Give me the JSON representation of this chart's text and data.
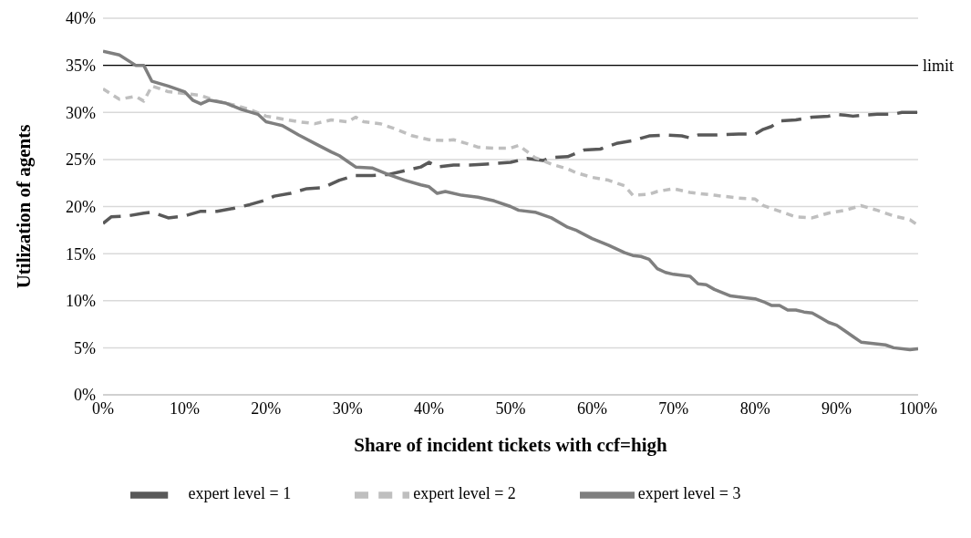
{
  "chart_data": {
    "type": "line",
    "xlabel": "Share of incident tickets with ccf=high",
    "ylabel": "Utilization of agents",
    "xlim": [
      0,
      100
    ],
    "xticks": [
      {
        "value": 0,
        "label": "0%"
      },
      {
        "value": 10,
        "label": "10%"
      },
      {
        "value": 20,
        "label": "20%"
      },
      {
        "value": 30,
        "label": "30%"
      },
      {
        "value": 40,
        "label": "40%"
      },
      {
        "value": 50,
        "label": "50%"
      },
      {
        "value": 60,
        "label": "60%"
      },
      {
        "value": 70,
        "label": "70%"
      },
      {
        "value": 80,
        "label": "80%"
      },
      {
        "value": 90,
        "label": "90%"
      },
      {
        "value": 100,
        "label": "100%"
      }
    ],
    "ylim": [
      0,
      40
    ],
    "yticks": [
      {
        "value": 0,
        "label": "0%"
      },
      {
        "value": 5,
        "label": "5%"
      },
      {
        "value": 10,
        "label": "10%"
      },
      {
        "value": 15,
        "label": "15%"
      },
      {
        "value": 20,
        "label": "20%"
      },
      {
        "value": 25,
        "label": "25%"
      },
      {
        "value": 30,
        "label": "30%"
      },
      {
        "value": 35,
        "label": "35%"
      },
      {
        "value": 40,
        "label": "40%"
      }
    ],
    "grid": "y",
    "legend": "bottom",
    "marker": "none",
    "ref_lines": [
      {
        "axis": "y",
        "value": 35,
        "label": "limit",
        "color": "#000000"
      }
    ],
    "series": [
      {
        "name": "expert level = 1",
        "color": "#595959",
        "line_style": "dashed",
        "x": [
          0,
          1,
          3,
          5,
          6,
          8,
          10,
          12,
          14,
          16,
          18,
          20,
          21,
          23,
          25,
          27,
          29,
          31,
          33,
          35,
          37,
          39,
          40,
          41,
          43,
          45,
          47,
          50,
          52,
          54,
          55,
          57,
          59,
          61,
          63,
          65,
          67,
          69,
          71,
          72,
          73,
          75,
          78,
          80,
          81,
          82,
          83,
          85,
          87,
          89,
          90,
          91,
          92,
          95,
          97,
          98,
          100
        ],
        "values": [
          18.2,
          18.9,
          19.0,
          19.3,
          19.4,
          18.8,
          19.0,
          19.5,
          19.5,
          19.8,
          20.2,
          20.7,
          21.1,
          21.4,
          21.9,
          22.0,
          22.8,
          23.3,
          23.3,
          23.4,
          23.8,
          24.2,
          24.7,
          24.2,
          24.4,
          24.4,
          24.5,
          24.7,
          25.1,
          24.9,
          25.2,
          25.3,
          26.0,
          26.1,
          26.7,
          27.0,
          27.5,
          27.6,
          27.5,
          27.3,
          27.6,
          27.6,
          27.7,
          27.7,
          28.2,
          28.5,
          29.1,
          29.2,
          29.5,
          29.6,
          29.8,
          29.7,
          29.6,
          29.8,
          29.8,
          30.0,
          30.0
        ]
      },
      {
        "name": "expert level = 2",
        "color": "#bfbfbf",
        "line_style": "dotted",
        "x": [
          0,
          2,
          4,
          5,
          6,
          8,
          10,
          12,
          14,
          16,
          18,
          20,
          22,
          24,
          26,
          28,
          30,
          31,
          32,
          34,
          36,
          38,
          40,
          42,
          43,
          45,
          46,
          48,
          50,
          51,
          53,
          55,
          57,
          58,
          60,
          62,
          64,
          65,
          67,
          68,
          70,
          72,
          75,
          78,
          80,
          81,
          83,
          85,
          87,
          89,
          91,
          93,
          95,
          97,
          99,
          100
        ],
        "values": [
          32.5,
          31.4,
          31.7,
          31.2,
          32.8,
          32.2,
          32.0,
          31.8,
          31.2,
          30.8,
          30.3,
          29.6,
          29.3,
          29.0,
          28.8,
          29.2,
          29.0,
          29.5,
          29.0,
          28.8,
          28.2,
          27.5,
          27.1,
          27.0,
          27.1,
          26.6,
          26.3,
          26.2,
          26.2,
          26.5,
          25.2,
          24.5,
          24.0,
          23.6,
          23.1,
          22.8,
          22.2,
          21.2,
          21.3,
          21.6,
          21.9,
          21.5,
          21.2,
          20.9,
          20.8,
          20.1,
          19.5,
          18.9,
          18.8,
          19.3,
          19.6,
          20.1,
          19.6,
          19.0,
          18.6,
          18.0
        ]
      },
      {
        "name": "expert level = 3",
        "color": "#7f7f7f",
        "line_style": "solid",
        "x": [
          0,
          2,
          4,
          5,
          6,
          8,
          10,
          11,
          12,
          13,
          15,
          17,
          19,
          20,
          21,
          22,
          24,
          26,
          28,
          29,
          30,
          31,
          33,
          35,
          37,
          39,
          40,
          41,
          42,
          44,
          46,
          48,
          50,
          51,
          53,
          55,
          57,
          58,
          60,
          62,
          64,
          65,
          66,
          67,
          68,
          69,
          70,
          72,
          73,
          74,
          75,
          77,
          79,
          80,
          81,
          82,
          83,
          84,
          85,
          86,
          87,
          88,
          89,
          90,
          91,
          92,
          93,
          95,
          96,
          97,
          99,
          100
        ],
        "values": [
          36.5,
          36.1,
          35.0,
          35.0,
          33.3,
          32.8,
          32.2,
          31.3,
          30.9,
          31.3,
          31.0,
          30.3,
          29.8,
          29.0,
          28.8,
          28.6,
          27.6,
          26.7,
          25.8,
          25.4,
          24.8,
          24.2,
          24.1,
          23.4,
          22.8,
          22.3,
          22.1,
          21.4,
          21.6,
          21.2,
          21.0,
          20.6,
          20.0,
          19.6,
          19.4,
          18.8,
          17.8,
          17.5,
          16.6,
          15.9,
          15.1,
          14.8,
          14.7,
          14.4,
          13.4,
          13.0,
          12.8,
          12.6,
          11.8,
          11.7,
          11.2,
          10.5,
          10.3,
          10.2,
          9.9,
          9.5,
          9.5,
          9.0,
          9.0,
          8.8,
          8.7,
          8.2,
          7.7,
          7.4,
          6.8,
          6.2,
          5.6,
          5.4,
          5.3,
          5.0,
          4.8,
          4.9
        ]
      }
    ]
  }
}
